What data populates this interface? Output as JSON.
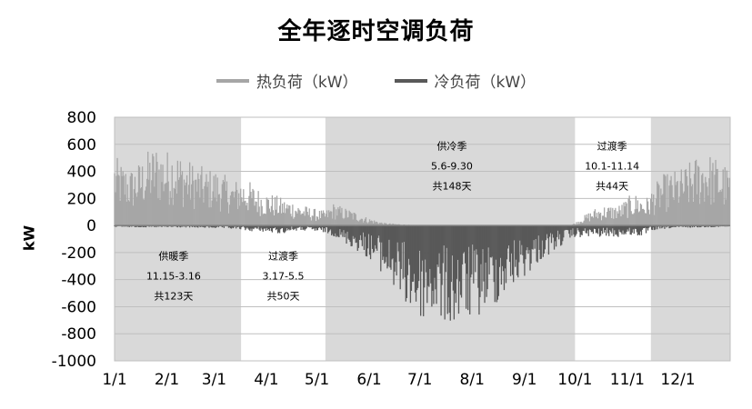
{
  "chart_data": {
    "type": "area",
    "title": "全年逐时空调负荷",
    "ylabel": "kW",
    "xlabel": "",
    "ylim": [
      -1000,
      800
    ],
    "yticks": [
      800,
      600,
      400,
      200,
      0,
      -200,
      -400,
      -600,
      -800,
      -1000
    ],
    "day_range": [
      0,
      365
    ],
    "xticks": [
      {
        "label": "1/1",
        "day": 0
      },
      {
        "label": "2/1",
        "day": 31
      },
      {
        "label": "3/1",
        "day": 59
      },
      {
        "label": "4/1",
        "day": 90
      },
      {
        "label": "5/1",
        "day": 120
      },
      {
        "label": "6/1",
        "day": 151
      },
      {
        "label": "7/1",
        "day": 181
      },
      {
        "label": "8/1",
        "day": 212
      },
      {
        "label": "9/1",
        "day": 243
      },
      {
        "label": "10/1",
        "day": 273
      },
      {
        "label": "11/1",
        "day": 304
      },
      {
        "label": "12/1",
        "day": 334
      }
    ],
    "grid": true,
    "legend_position": "top",
    "colors": {
      "heat": "#a6a6a6",
      "cool": "#595959",
      "shade": "#d9d9d9",
      "grid": "#bfbfbf"
    },
    "periods": [
      {
        "name": "供暖季",
        "start_day": 0,
        "end_day": 75,
        "shaded": true
      },
      {
        "name": "过渡季",
        "start_day": 75,
        "end_day": 125,
        "shaded": false
      },
      {
        "name": "供冷季",
        "start_day": 125,
        "end_day": 273,
        "shaded": true
      },
      {
        "name": "过渡季",
        "start_day": 273,
        "end_day": 318,
        "shaded": false
      },
      {
        "name": "供暖季",
        "start_day": 318,
        "end_day": 365,
        "shaded": true
      }
    ],
    "annotations": [
      {
        "lines": [
          "供暖季",
          "11.15-3.16",
          "共123天"
        ],
        "day": 35,
        "y": -250
      },
      {
        "lines": [
          "过渡季",
          "3.17-5.5",
          "共50天"
        ],
        "day": 100,
        "y": -250
      },
      {
        "lines": [
          "供冷季",
          "5.6-9.30",
          "共148天"
        ],
        "day": 200,
        "y": 560
      },
      {
        "lines": [
          "过渡季",
          "10.1-11.14",
          "共44天"
        ],
        "day": 295,
        "y": 560
      }
    ],
    "series": [
      {
        "name": "热负荷（kW）",
        "color": "#a6a6a6",
        "sign": "positive",
        "day": [
          0,
          5,
          10,
          15,
          20,
          25,
          31,
          35,
          40,
          45,
          50,
          55,
          59,
          63,
          67,
          70,
          75,
          80,
          85,
          90,
          95,
          100,
          105,
          110,
          115,
          120,
          125,
          130,
          135,
          140,
          145,
          150,
          155,
          160,
          170,
          180,
          190,
          200,
          210,
          220,
          230,
          240,
          250,
          260,
          270,
          273,
          275,
          280,
          285,
          290,
          295,
          300,
          305,
          310,
          315,
          320,
          325,
          330,
          335,
          340,
          345,
          350,
          355,
          360,
          365
        ],
        "values": [
          520,
          460,
          430,
          480,
          560,
          610,
          560,
          600,
          520,
          480,
          450,
          420,
          430,
          400,
          360,
          330,
          360,
          330,
          280,
          250,
          230,
          200,
          190,
          160,
          140,
          120,
          110,
          170,
          140,
          120,
          90,
          60,
          40,
          20,
          10,
          0,
          0,
          0,
          0,
          0,
          0,
          0,
          0,
          0,
          0,
          20,
          40,
          90,
          130,
          150,
          150,
          160,
          220,
          240,
          200,
          300,
          380,
          400,
          420,
          460,
          520,
          560,
          520,
          480,
          420
        ]
      },
      {
        "name": "冷负荷（kW）",
        "color": "#595959",
        "sign": "negative",
        "day": [
          0,
          20,
          40,
          60,
          75,
          80,
          85,
          90,
          95,
          100,
          105,
          110,
          115,
          120,
          125,
          130,
          135,
          140,
          145,
          150,
          155,
          160,
          165,
          170,
          175,
          180,
          185,
          190,
          195,
          200,
          205,
          210,
          215,
          220,
          225,
          230,
          235,
          240,
          245,
          250,
          255,
          260,
          265,
          270,
          273,
          278,
          283,
          288,
          293,
          298,
          303,
          308,
          313,
          318,
          330,
          345,
          365
        ],
        "values": [
          -10,
          -15,
          -15,
          -20,
          -30,
          -45,
          -40,
          -50,
          -60,
          -60,
          -40,
          -40,
          -40,
          -50,
          -55,
          -80,
          -120,
          -160,
          -200,
          -240,
          -300,
          -380,
          -460,
          -560,
          -640,
          -720,
          -690,
          -700,
          -730,
          -760,
          -730,
          -700,
          -690,
          -640,
          -600,
          -540,
          -480,
          -420,
          -360,
          -300,
          -240,
          -200,
          -150,
          -110,
          -90,
          -90,
          -80,
          -90,
          -80,
          -90,
          -80,
          -70,
          -90,
          -40,
          -20,
          -15,
          -10
        ]
      }
    ]
  }
}
